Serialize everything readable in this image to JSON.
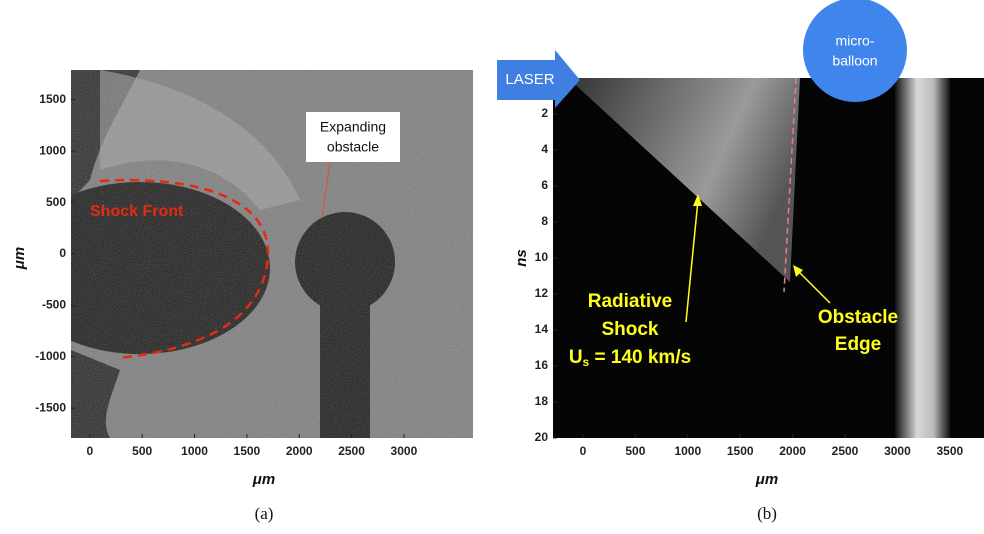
{
  "panels": [
    {
      "xlabel": "μm",
      "ylabel": "μm",
      "xlim": [
        -180,
        3660
      ],
      "ylim": [
        -1790,
        1790
      ],
      "xticks": [
        0,
        500,
        1000,
        1500,
        2000,
        2500,
        3000
      ],
      "yticks": [
        -1500,
        -1000,
        -500,
        0,
        500,
        1000,
        1500
      ],
      "shock_label": "Shock Front",
      "obstacle_label": [
        "Expanding",
        "obstacle"
      ],
      "caption": "(a)"
    },
    {
      "xlabel": "μm",
      "ylabel": "ns",
      "xlim": [
        -286,
        3826
      ],
      "ylim": [
        0,
        20
      ],
      "y_inverted": true,
      "xticks": [
        0,
        500,
        1000,
        1500,
        2000,
        2500,
        3000,
        3500
      ],
      "yticks": [
        2,
        4,
        6,
        8,
        10,
        12,
        14,
        16,
        18,
        20
      ],
      "laser_label": "LASER",
      "balloon_label": [
        "micro-",
        "balloon"
      ],
      "shock_label": [
        "Radiative",
        "Shock"
      ],
      "velocity_label": {
        "main": "U",
        "sub": "s",
        "rest": " = 140 km/s"
      },
      "edge_label": [
        "Obstacle",
        "Edge"
      ],
      "caption": "(b)"
    }
  ]
}
